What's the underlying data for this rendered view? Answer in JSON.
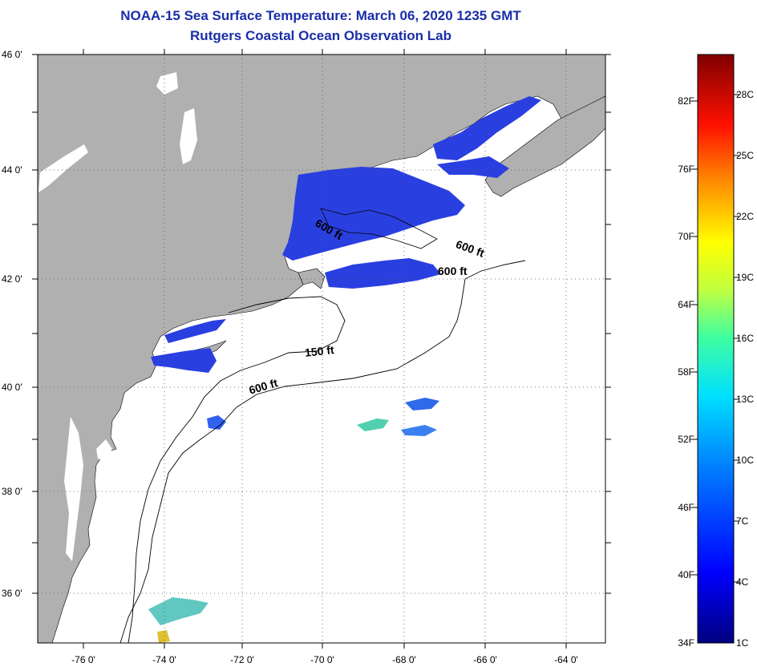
{
  "title": {
    "line1": "NOAA-15 Sea Surface Temperature:  March 06, 2020 1235 GMT",
    "line2": "Rutgers Coastal Ocean Observation Lab"
  },
  "map": {
    "lat_labels": [
      "46 0'",
      "44 0'",
      "42 0'",
      "40 0'",
      "38 0'",
      "36 0'"
    ],
    "lon_labels": [
      "-76 0'",
      "-74 0'",
      "-72 0'",
      "-70 0'",
      "-68 0'",
      "-66 0'",
      "-64 0'"
    ],
    "contour_labels": [
      "600 ft",
      "600 ft",
      "600 ft",
      "150 ft",
      "600 ft"
    ],
    "colors": {
      "land": "#b0b0b0",
      "ocean": "#ffffff",
      "sst_cold": "#2a3fe0",
      "grid": "#555555"
    }
  },
  "colorbar": {
    "fahrenheit_labels": [
      "82F",
      "76F",
      "70F",
      "64F",
      "58F",
      "52F",
      "46F",
      "40F",
      "34F"
    ],
    "celsius_labels": [
      "28C",
      "25C",
      "22C",
      "19C",
      "16C",
      "13C",
      "10C",
      "7C",
      "4C",
      "1C"
    ],
    "gradient": [
      "#000080",
      "#0000ff",
      "#0080ff",
      "#00ffff",
      "#80ff80",
      "#ffff00",
      "#ff8000",
      "#ff0000",
      "#800000"
    ]
  }
}
